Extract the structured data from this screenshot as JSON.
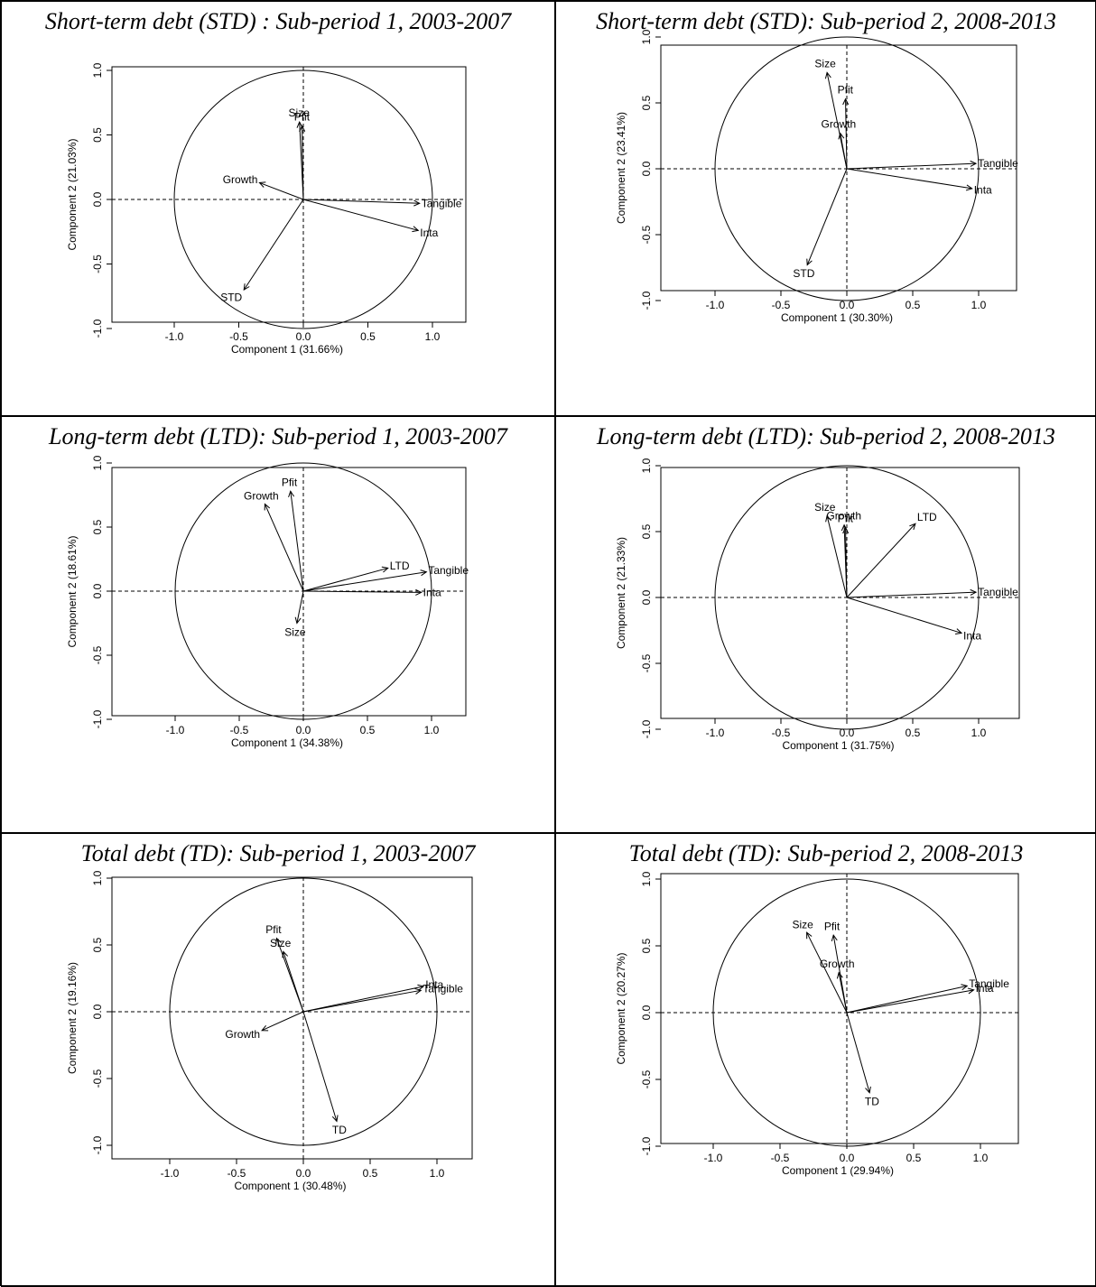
{
  "panels": [
    {
      "title": "Short-term debt (STD) : Sub-period 1, 2003-2007",
      "chart_data": {
        "type": "scatter",
        "title": "Short-term debt (STD) : Sub-period 1, 2003-2007",
        "xlabel": "Component 1 (31.66%)",
        "ylabel": "Component 2 (21.03%)",
        "xlim": [
          -1.0,
          1.0
        ],
        "ylim": [
          -1.0,
          1.0
        ],
        "xticks": [
          "-1.0",
          "-0.5",
          "0.0",
          "0.5",
          "1.0"
        ],
        "yticks": [
          "-1.0",
          "-0.5",
          "0.0",
          "0.5",
          "1.0"
        ],
        "vectors": [
          {
            "name": "Size",
            "x": -0.03,
            "y": 0.6
          },
          {
            "name": "Pfit",
            "x": -0.01,
            "y": 0.57
          },
          {
            "name": "Growth",
            "x": -0.34,
            "y": 0.13
          },
          {
            "name": "Tangible",
            "x": 0.9,
            "y": -0.03
          },
          {
            "name": "Inta",
            "x": 0.89,
            "y": -0.24
          },
          {
            "name": "STD",
            "x": -0.46,
            "y": -0.7
          }
        ]
      }
    },
    {
      "title": "Short-term debt (STD): Sub-period 2, 2008-2013",
      "chart_data": {
        "type": "scatter",
        "title": "Short-term debt (STD): Sub-period 2, 2008-2013",
        "xlabel": "Component 1 (30.30%)",
        "ylabel": "Component 2 (23.41%)",
        "xlim": [
          -1.0,
          1.0
        ],
        "ylim": [
          -1.0,
          1.0
        ],
        "xticks": [
          "-1.0",
          "-0.5",
          "0.0",
          "0.5",
          "1.0"
        ],
        "yticks": [
          "-1.0",
          "-0.5",
          "0.0",
          "0.5",
          "1.0"
        ],
        "vectors": [
          {
            "name": "Size",
            "x": -0.15,
            "y": 0.73
          },
          {
            "name": "Pfit",
            "x": -0.01,
            "y": 0.53
          },
          {
            "name": "Growth",
            "x": -0.05,
            "y": 0.27
          },
          {
            "name": "Tangible",
            "x": 0.98,
            "y": 0.04
          },
          {
            "name": "Inta",
            "x": 0.95,
            "y": -0.15
          },
          {
            "name": "STD",
            "x": -0.3,
            "y": -0.73
          }
        ]
      }
    },
    {
      "title": "Long-term debt (LTD): Sub-period 1, 2003-2007",
      "chart_data": {
        "type": "scatter",
        "title": "Long-term debt (LTD): Sub-period 1, 2003-2007",
        "xlabel": "Component 1 (34.38%)",
        "ylabel": "Component 2 (18.61%)",
        "xlim": [
          -1.0,
          1.0
        ],
        "ylim": [
          -1.0,
          1.0
        ],
        "xticks": [
          "-1.0",
          "-0.5",
          "0.0",
          "0.5",
          "1.0"
        ],
        "yticks": [
          "-1.0",
          "-0.5",
          "0.0",
          "0.5",
          "1.0"
        ],
        "vectors": [
          {
            "name": "Pfit",
            "x": -0.1,
            "y": 0.78
          },
          {
            "name": "Growth",
            "x": -0.3,
            "y": 0.68
          },
          {
            "name": "LTD",
            "x": 0.66,
            "y": 0.18
          },
          {
            "name": "Tangible",
            "x": 0.96,
            "y": 0.15
          },
          {
            "name": "Inta",
            "x": 0.92,
            "y": -0.01
          },
          {
            "name": "Size",
            "x": -0.05,
            "y": -0.25
          }
        ]
      }
    },
    {
      "title": "Long-term debt (LTD): Sub-period 2, 2008-2013",
      "chart_data": {
        "type": "scatter",
        "title": "Long-term debt (LTD): Sub-period 2, 2008-2013",
        "xlabel": "Component 1 (31.75%)",
        "ylabel": "Component 2 (21.33%)",
        "xlim": [
          -1.0,
          1.0
        ],
        "ylim": [
          -1.0,
          1.0
        ],
        "xticks": [
          "-1.0",
          "-0.5",
          "0.0",
          "0.5",
          "1.0"
        ],
        "yticks": [
          "-1.0",
          "-0.5",
          "0.0",
          "0.5",
          "1.0"
        ],
        "vectors": [
          {
            "name": "Size",
            "x": -0.15,
            "y": 0.62
          },
          {
            "name": "Growth",
            "x": -0.02,
            "y": 0.55
          },
          {
            "name": "Pfit",
            "x": -0.01,
            "y": 0.53
          },
          {
            "name": "LTD",
            "x": 0.52,
            "y": 0.56
          },
          {
            "name": "Tangible",
            "x": 0.98,
            "y": 0.04
          },
          {
            "name": "Inta",
            "x": 0.87,
            "y": -0.27
          }
        ]
      }
    },
    {
      "title": "Total debt (TD): Sub-period 1, 2003-2007",
      "chart_data": {
        "type": "scatter",
        "title": "Total debt (TD): Sub-period 1, 2003-2007",
        "xlabel": "Component 1 (30.48%)",
        "ylabel": "Component 2 (19.16%)",
        "xlim": [
          -1.0,
          1.0
        ],
        "ylim": [
          -1.0,
          1.0
        ],
        "xticks": [
          "-1.0",
          "-0.5",
          "0.0",
          "0.5",
          "1.0"
        ],
        "yticks": [
          "-1.0",
          "-0.5",
          "0.0",
          "0.5",
          "1.0"
        ],
        "vectors": [
          {
            "name": "Pfit",
            "x": -0.2,
            "y": 0.55
          },
          {
            "name": "Size",
            "x": -0.15,
            "y": 0.45
          },
          {
            "name": "Inta",
            "x": 0.9,
            "y": 0.19
          },
          {
            "name": "Tangible",
            "x": 0.88,
            "y": 0.16
          },
          {
            "name": "Growth",
            "x": -0.31,
            "y": -0.14
          },
          {
            "name": "TD",
            "x": 0.25,
            "y": -0.82
          }
        ]
      }
    },
    {
      "title": "Total debt (TD): Sub-period 2, 2008-2013",
      "chart_data": {
        "type": "scatter",
        "title": "Total debt (TD): Sub-period 2, 2008-2013",
        "xlabel": "Component 1 (29.94%)",
        "ylabel": "Component 2 (20.27%)",
        "xlim": [
          -1.0,
          1.0
        ],
        "ylim": [
          -1.0,
          1.0
        ],
        "xticks": [
          "-1.0",
          "-0.5",
          "0.0",
          "0.5",
          "1.0"
        ],
        "yticks": [
          "-1.0",
          "-0.5",
          "0.0",
          "0.5",
          "1.0"
        ],
        "vectors": [
          {
            "name": "Size",
            "x": -0.3,
            "y": 0.6
          },
          {
            "name": "Pfit",
            "x": -0.1,
            "y": 0.58
          },
          {
            "name": "Growth",
            "x": -0.06,
            "y": 0.3
          },
          {
            "name": "Tangible",
            "x": 0.9,
            "y": 0.2
          },
          {
            "name": "Inta",
            "x": 0.95,
            "y": 0.17
          },
          {
            "name": "TD",
            "x": 0.17,
            "y": -0.6
          }
        ]
      }
    }
  ]
}
